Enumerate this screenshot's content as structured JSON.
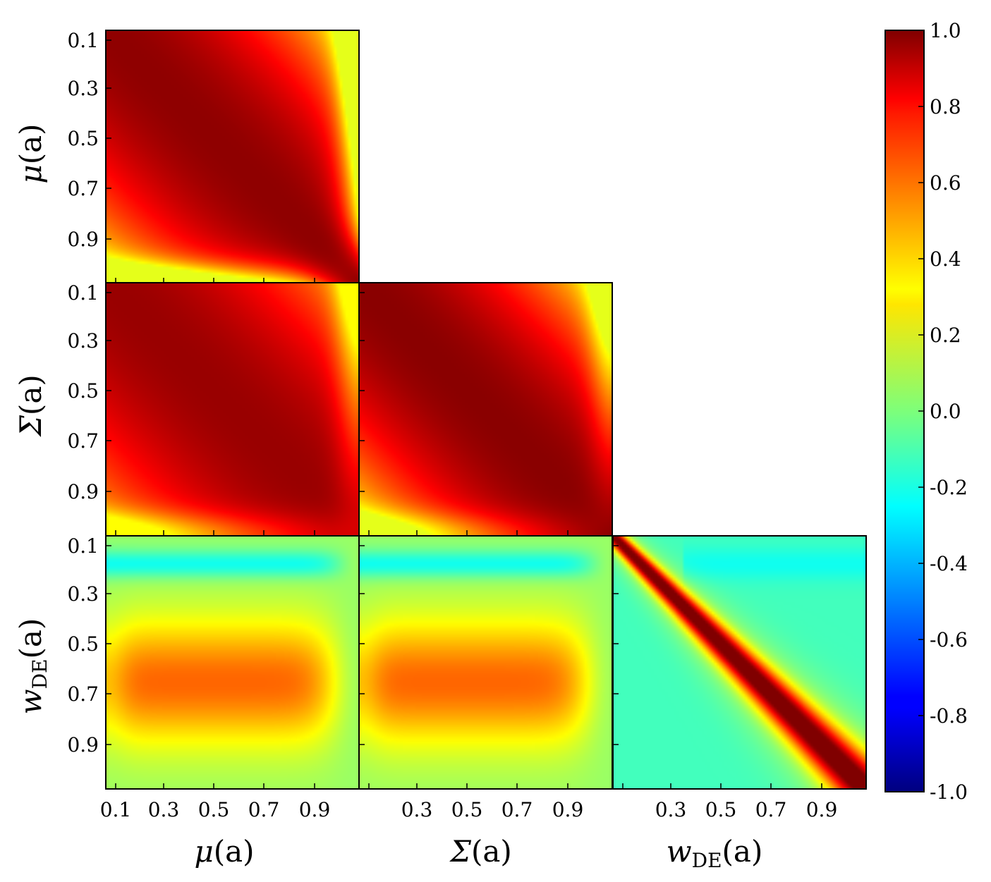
{
  "chart_data": {
    "type": "heatmap",
    "layout": "lower-triangle corner plot",
    "variables": [
      "μ(a)",
      "Σ(a)",
      "w_DE(a)"
    ],
    "x_tick_labels_panel1": [
      "0.1",
      "0.3",
      "0.5",
      "0.7",
      "0.9"
    ],
    "x_tick_labels_other": [
      "0.3",
      "0.5",
      "0.7",
      "0.9"
    ],
    "y_tick_labels": [
      "0.1",
      "0.3",
      "0.5",
      "0.7",
      "0.9"
    ],
    "axis_range": [
      0.1,
      1.0
    ],
    "row_labels": [
      {
        "base": "μ",
        "sub": "",
        "arg": "(a)"
      },
      {
        "base": "Σ",
        "sub": "",
        "arg": "(a)"
      },
      {
        "base": "w",
        "sub": "DE",
        "arg": "(a)"
      }
    ],
    "col_labels": [
      {
        "base": "μ",
        "sub": "",
        "arg": "(a)"
      },
      {
        "base": "Σ",
        "sub": "",
        "arg": "(a)"
      },
      {
        "base": "w",
        "sub": "DE",
        "arg": "(a)"
      }
    ],
    "panels": [
      {
        "row": 0,
        "col": 0,
        "pattern": "mu_mu",
        "description_values": "diagonal ~1.0; edges near a=1 fall to ~0.3"
      },
      {
        "row": 1,
        "col": 0,
        "pattern": "sigma_mu",
        "description_values": "broad high correlation ~0.9–1.0"
      },
      {
        "row": 1,
        "col": 1,
        "pattern": "sigma_sigma",
        "description_values": "diagonal ~1.0"
      },
      {
        "row": 2,
        "col": 0,
        "pattern": "w_mu",
        "description_values": "peak ~0.55 around a≈0.6; min ~-0.25 near a≈0.2"
      },
      {
        "row": 2,
        "col": 1,
        "pattern": "w_sigma",
        "description_values": "peak ~0.55 around a≈0.6; min ~-0.25 near a≈0.2"
      },
      {
        "row": 2,
        "col": 2,
        "pattern": "w_w",
        "description_values": "narrow diagonal ~1.0; off-diagonal ~-0.1"
      }
    ],
    "colorbar": {
      "colormap": "jet",
      "range": [
        -1.0,
        1.0
      ],
      "tick_labels": [
        "1.0",
        "0.8",
        "0.6",
        "0.4",
        "0.2",
        "0.0",
        "-0.2",
        "-0.4",
        "-0.6",
        "-0.8",
        "-1.0"
      ]
    },
    "grid": false
  }
}
